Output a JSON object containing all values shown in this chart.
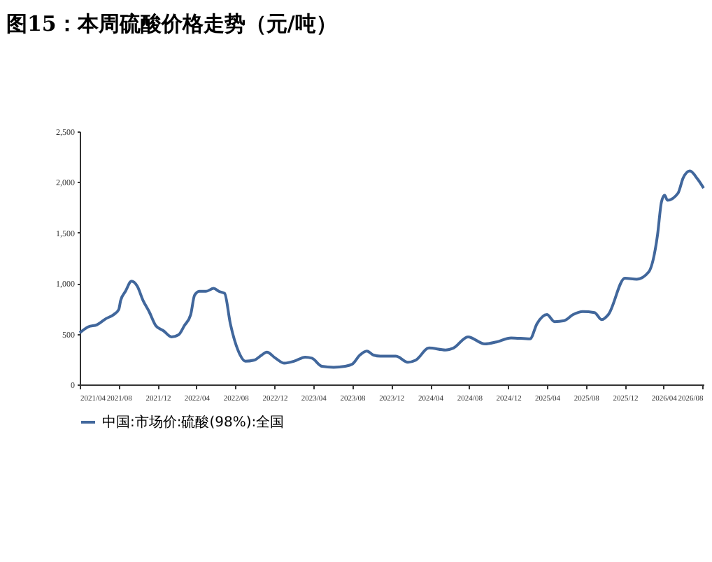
{
  "chart_data": {
    "type": "line",
    "title": "图15：本周硫酸价格走势（元/吨）",
    "x": [
      "2021-04-01",
      "2021-04-28",
      "2021-05-25",
      "2021-06-22",
      "2021-07-16",
      "2021-08-01",
      "2021-08-07",
      "2021-08-22",
      "2021-09-10",
      "2021-09-28",
      "2021-10-16",
      "2021-11-04",
      "2021-11-25",
      "2021-12-19",
      "2022-01-13",
      "2022-02-04",
      "2022-02-22",
      "2022-03-14",
      "2022-03-26",
      "2022-04-10",
      "2022-05-01",
      "2022-05-25",
      "2022-06-10",
      "2022-06-28",
      "2022-07-16",
      "2022-08-10",
      "2022-09-01",
      "2022-09-28",
      "2022-10-22",
      "2022-11-07",
      "2022-12-04",
      "2023-01-01",
      "2023-02-01",
      "2023-03-07",
      "2023-03-28",
      "2023-04-28",
      "2023-06-04",
      "2023-07-10",
      "2023-08-01",
      "2023-08-25",
      "2023-09-16",
      "2023-10-07",
      "2023-10-28",
      "2023-12-16",
      "2024-01-22",
      "2024-02-16",
      "2024-03-28",
      "2024-05-19",
      "2024-06-13",
      "2024-07-28",
      "2024-09-19",
      "2024-10-25",
      "2024-12-10",
      "2025-02-07",
      "2025-03-01",
      "2025-04-01",
      "2025-04-25",
      "2025-05-25",
      "2025-06-22",
      "2025-07-22",
      "2025-08-28",
      "2025-09-19",
      "2025-10-10",
      "2025-12-01",
      "2026-01-07",
      "2026-02-13",
      "2026-03-13",
      "2026-03-25",
      "2026-04-04",
      "2026-04-13",
      "2026-05-16",
      "2026-06-01",
      "2026-06-22",
      "2026-07-16",
      "2026-08-04"
    ],
    "series": [
      {
        "name": "中国:市场价:硫酸(98%):全国",
        "color": "#41679c",
        "values": [
          510,
          570,
          590,
          650,
          690,
          740,
          830,
          920,
          1020,
          970,
          830,
          720,
          580,
          530,
          470,
          490,
          580,
          690,
          880,
          920,
          920,
          950,
          920,
          900,
          600,
          330,
          230,
          240,
          290,
          320,
          260,
          210,
          230,
          270,
          260,
          180,
          170,
          180,
          200,
          290,
          330,
          290,
          280,
          280,
          220,
          240,
          360,
          340,
          360,
          470,
          400,
          420,
          460,
          450,
          600,
          690,
          620,
          630,
          690,
          720,
          710,
          640,
          690,
          1050,
          1040,
          1110,
          1480,
          1800,
          1870,
          1820,
          1890,
          2040,
          2110,
          2030,
          1940
        ]
      }
    ],
    "xlim": [
      "2021-04-01",
      "2026-08-04"
    ],
    "xticks": [
      {
        "value": "2021-04",
        "label": "2021/04"
      },
      {
        "value": "2021-08",
        "label": "2021/08"
      },
      {
        "value": "2021-12",
        "label": "2021/12"
      },
      {
        "value": "2022-04",
        "label": "2022/04"
      },
      {
        "value": "2022-08",
        "label": "2022/08"
      },
      {
        "value": "2022-12",
        "label": "2022/12"
      },
      {
        "value": "2023-04",
        "label": "2023/04"
      },
      {
        "value": "2023-08",
        "label": "2023/08"
      },
      {
        "value": "2023-12",
        "label": "2023/12"
      },
      {
        "value": "2024-04",
        "label": "2024/04"
      },
      {
        "value": "2024-08",
        "label": "2024/08"
      },
      {
        "value": "2024-12",
        "label": "2024/12"
      },
      {
        "value": "2025-04",
        "label": "2025/04"
      },
      {
        "value": "2025-08",
        "label": "2025/08"
      },
      {
        "value": "2025-12",
        "label": "2025/12"
      },
      {
        "value": "2026-04",
        "label": "2026/04"
      },
      {
        "value": "2026-08",
        "label": "2026/08"
      }
    ],
    "ylim": [
      0,
      2500
    ],
    "yticks": [
      {
        "value": 0,
        "label": "0"
      },
      {
        "value": 500,
        "label": "500"
      },
      {
        "value": 1000,
        "label": "1,000"
      },
      {
        "value": 1500,
        "label": "1,500"
      },
      {
        "value": 2000,
        "label": "2,000"
      },
      {
        "value": 2500,
        "label": "2,500"
      }
    ],
    "grid": false,
    "legend": "bottom",
    "line_style": "solid"
  }
}
